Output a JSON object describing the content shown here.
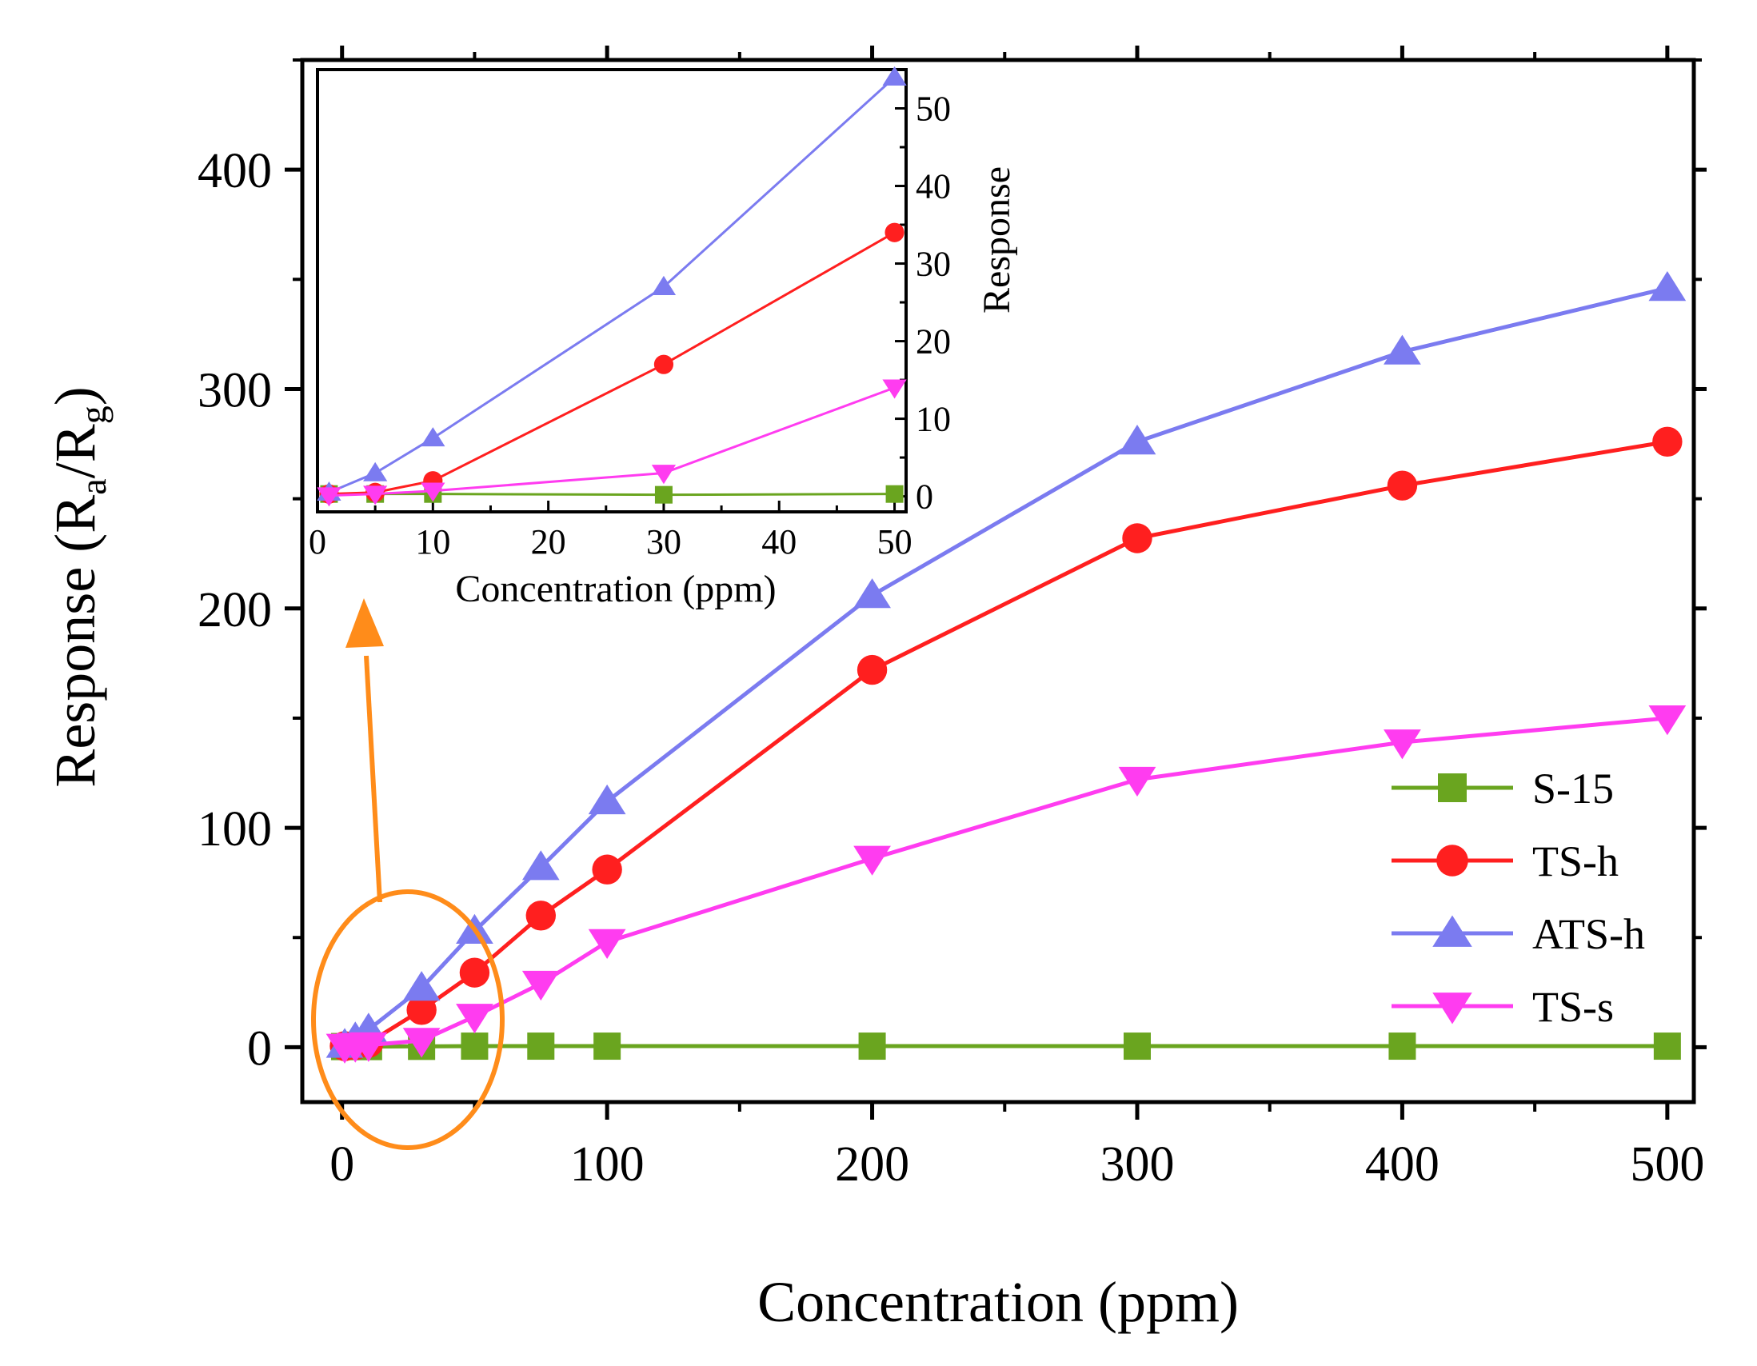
{
  "chart_data": [
    {
      "type": "line",
      "role": "main",
      "xlabel": "Concentration (ppm)",
      "ylabel": "Response (R",
      "ylabel_sub_a": "a",
      "ylabel_sep": "/R",
      "ylabel_sub_g": "g",
      "ylabel_close": ")",
      "xlim": [
        -15,
        510
      ],
      "ylim": [
        -25,
        450
      ],
      "x_ticks": [
        0,
        100,
        200,
        300,
        400,
        500
      ],
      "x_tick_labels": [
        "0",
        "100",
        "200",
        "300",
        "400",
        "500"
      ],
      "y_ticks": [
        0,
        100,
        200,
        300,
        400
      ],
      "y_tick_labels": [
        "0",
        "100",
        "200",
        "300",
        "400"
      ],
      "grid": false,
      "legend_position": "bottom-right",
      "series": [
        {
          "name": "S-15",
          "color": "#6aa51f",
          "marker": "square",
          "x": [
            1,
            5,
            10,
            30,
            50,
            75,
            100,
            200,
            300,
            400,
            500
          ],
          "y": [
            0.3,
            0.3,
            0.3,
            0.4,
            0.5,
            0.5,
            0.5,
            0.5,
            0.5,
            0.5,
            0.5
          ]
        },
        {
          "name": "TS-h",
          "color": "#ff1f1f",
          "marker": "circle",
          "x": [
            1,
            5,
            10,
            30,
            50,
            75,
            100,
            200,
            300,
            400,
            500
          ],
          "y": [
            0.5,
            1,
            2,
            17,
            34,
            60,
            81,
            172,
            232,
            256,
            276
          ]
        },
        {
          "name": "ATS-h",
          "color": "#7b7bf0",
          "marker": "triangle-up",
          "x": [
            1,
            5,
            10,
            30,
            50,
            75,
            100,
            200,
            300,
            400,
            500
          ],
          "y": [
            1,
            4,
            8,
            27,
            53,
            82,
            112,
            206,
            276,
            317,
            346
          ]
        },
        {
          "name": "TS-s",
          "color": "#ff3cf0",
          "marker": "triangle-down",
          "x": [
            1,
            5,
            10,
            30,
            50,
            75,
            100,
            200,
            300,
            400,
            500
          ],
          "y": [
            0.3,
            0.7,
            1,
            3,
            14,
            29,
            48,
            86,
            122,
            139,
            150
          ]
        }
      ]
    },
    {
      "type": "line",
      "role": "inset",
      "xlabel": "Concentration (ppm)",
      "ylabel": "Response",
      "xlim": [
        0,
        51
      ],
      "ylim": [
        -2,
        55
      ],
      "x_ticks": [
        0,
        10,
        20,
        30,
        40,
        50
      ],
      "x_tick_labels": [
        "0",
        "10",
        "20",
        "30",
        "40",
        "50"
      ],
      "y_ticks": [
        0,
        10,
        20,
        30,
        40,
        50
      ],
      "y_tick_labels": [
        "0",
        "10",
        "20",
        "30",
        "40",
        "50"
      ],
      "y_axis_side": "right",
      "grid": false,
      "series": [
        {
          "name": "S-15",
          "color": "#6aa51f",
          "marker": "square",
          "x": [
            1,
            5,
            10,
            30,
            50
          ],
          "y": [
            0.3,
            0.3,
            0.3,
            0.2,
            0.3
          ]
        },
        {
          "name": "TS-h",
          "color": "#ff1f1f",
          "marker": "circle",
          "x": [
            1,
            5,
            10,
            30,
            50
          ],
          "y": [
            0.3,
            0.5,
            2,
            17,
            34
          ]
        },
        {
          "name": "ATS-h",
          "color": "#7b7bf0",
          "marker": "triangle-up",
          "x": [
            1,
            5,
            10,
            30,
            50
          ],
          "y": [
            0.5,
            3,
            7.5,
            27,
            54
          ]
        },
        {
          "name": "TS-s",
          "color": "#ff3cf0",
          "marker": "triangle-down",
          "x": [
            1,
            5,
            10,
            30,
            50
          ],
          "y": [
            0.1,
            0.3,
            0.7,
            3,
            14
          ]
        }
      ]
    }
  ],
  "annotation": {
    "color": "#ff8c1a"
  }
}
